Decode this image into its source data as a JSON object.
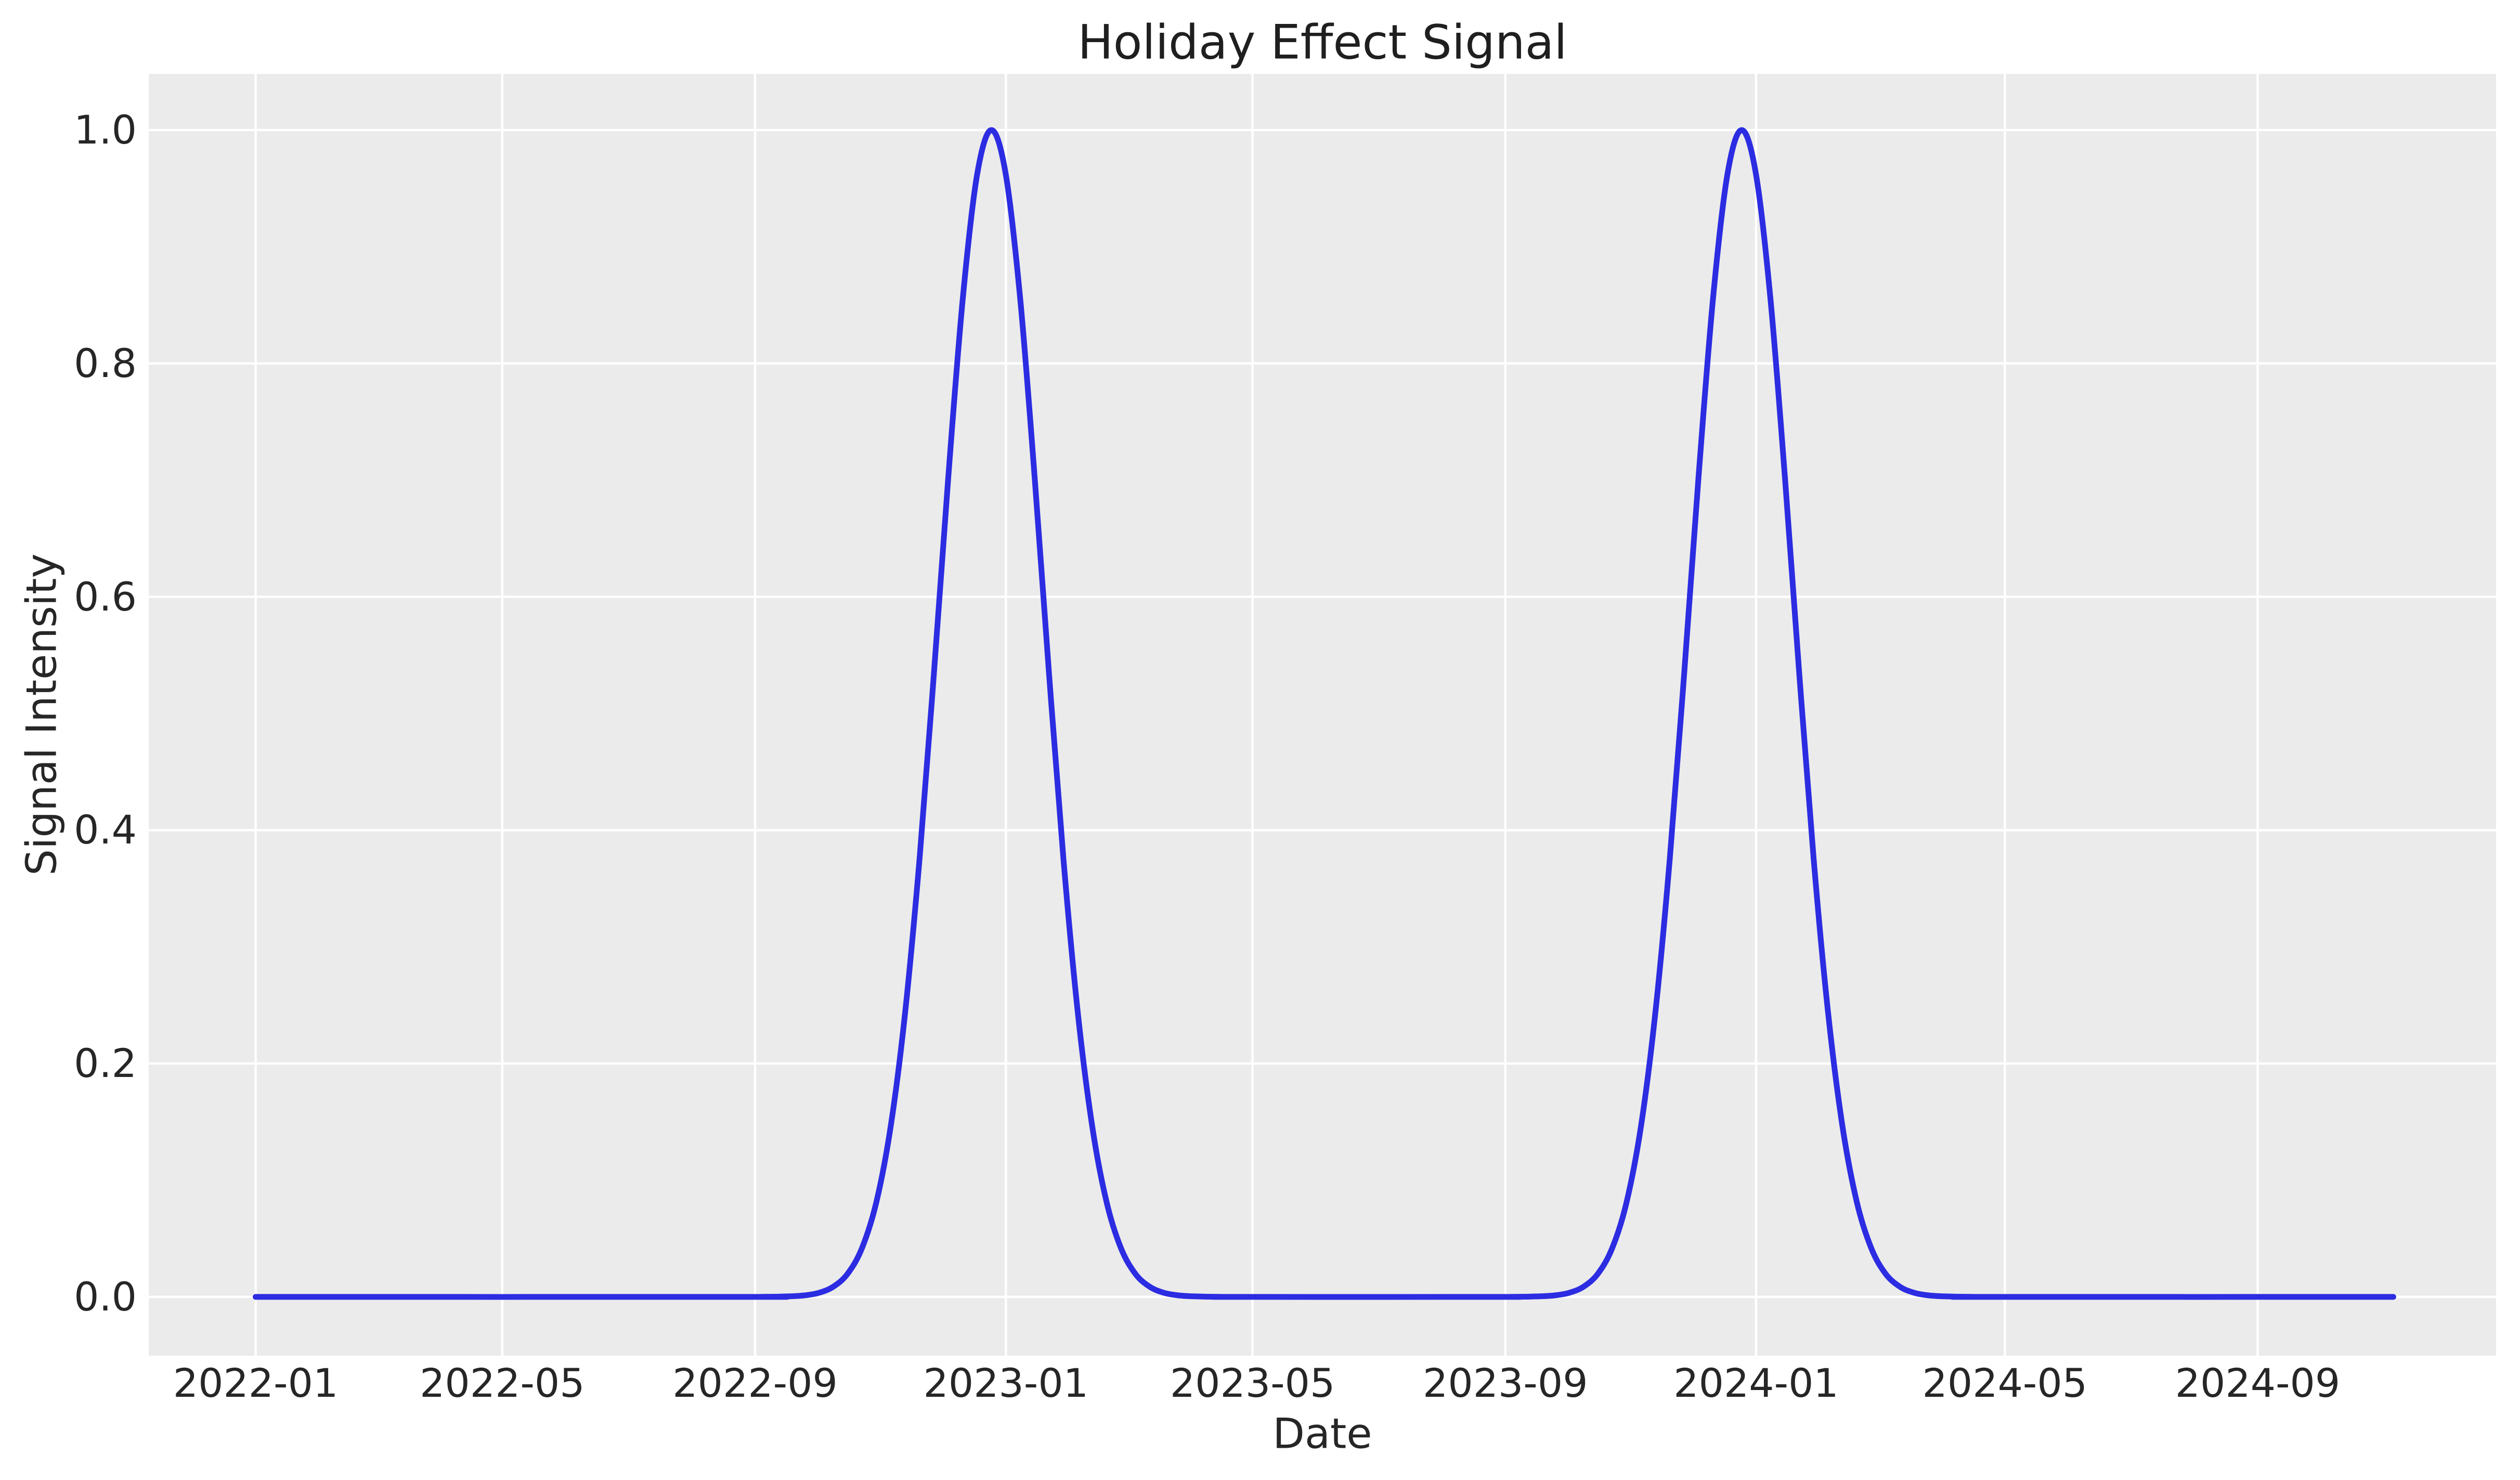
{
  "figure": {
    "title": "Holiday Effect Signal",
    "background_color": "#ffffff",
    "text_color": "#262626"
  },
  "chart_data": {
    "type": "line",
    "title": "Holiday Effect Signal",
    "xlabel": "Date",
    "ylabel": "Signal Intensity",
    "series_name": "Holiday Effect Signal",
    "line_color": "#2c2ce2",
    "plot_bg_color": "#ebebeb",
    "grid_color": "#ffffff",
    "grid": true,
    "legend": false,
    "x_start_date": "2022-01-01",
    "x_end_date": "2024-11-05",
    "x_ticks": [
      {
        "label": "2022-01",
        "day": 0
      },
      {
        "label": "2022-05",
        "day": 120
      },
      {
        "label": "2022-09",
        "day": 243
      },
      {
        "label": "2023-01",
        "day": 365
      },
      {
        "label": "2023-05",
        "day": 485
      },
      {
        "label": "2023-09",
        "day": 608
      },
      {
        "label": "2024-01",
        "day": 730
      },
      {
        "label": "2024-05",
        "day": 851
      },
      {
        "label": "2024-09",
        "day": 974
      }
    ],
    "y_ticks": [
      {
        "label": "0.0",
        "value": 0.0
      },
      {
        "label": "0.2",
        "value": 0.2
      },
      {
        "label": "0.4",
        "value": 0.4
      },
      {
        "label": "0.6",
        "value": 0.6
      },
      {
        "label": "0.8",
        "value": 0.8
      },
      {
        "label": "1.0",
        "value": 1.0
      }
    ],
    "xlim_days": [
      -52,
      1090
    ],
    "ylim": [
      -0.0504,
      1.0482
    ],
    "peaks": [
      {
        "date": "2022-12-25",
        "day": 358,
        "value": 1.0
      },
      {
        "date": "2023-12-25",
        "day": 723,
        "value": 1.0
      }
    ],
    "gaussian_sigma_days": 25,
    "points": [
      [
        0,
        0
      ],
      [
        239,
        0
      ],
      [
        246,
        0.0001
      ],
      [
        253,
        0.0002
      ],
      [
        260,
        0.0005
      ],
      [
        267,
        0.0013
      ],
      [
        274,
        0.0035
      ],
      [
        281,
        0.0087
      ],
      [
        288,
        0.0198
      ],
      [
        295,
        0.0418
      ],
      [
        302,
        0.0813
      ],
      [
        309,
        0.1464
      ],
      [
        316,
        0.2438
      ],
      [
        323,
        0.3753
      ],
      [
        330,
        0.5341
      ],
      [
        337,
        0.7027
      ],
      [
        344,
        0.8549
      ],
      [
        351,
        0.9616
      ],
      [
        358,
        1.0
      ],
      [
        365,
        0.9616
      ],
      [
        372,
        0.8549
      ],
      [
        379,
        0.7027
      ],
      [
        386,
        0.5341
      ],
      [
        393,
        0.3753
      ],
      [
        400,
        0.2438
      ],
      [
        407,
        0.1464
      ],
      [
        414,
        0.0813
      ],
      [
        421,
        0.0418
      ],
      [
        428,
        0.0198
      ],
      [
        435,
        0.0087
      ],
      [
        442,
        0.0035
      ],
      [
        449,
        0.0013
      ],
      [
        456,
        0.0005
      ],
      [
        463,
        0.0002
      ],
      [
        470,
        0.0001
      ],
      [
        477,
        0
      ],
      [
        604,
        0
      ],
      [
        611,
        0.0001
      ],
      [
        618,
        0.0002
      ],
      [
        625,
        0.0005
      ],
      [
        632,
        0.0013
      ],
      [
        639,
        0.0035
      ],
      [
        646,
        0.0087
      ],
      [
        653,
        0.0198
      ],
      [
        660,
        0.0418
      ],
      [
        667,
        0.0813
      ],
      [
        674,
        0.1464
      ],
      [
        681,
        0.2438
      ],
      [
        688,
        0.3753
      ],
      [
        695,
        0.5341
      ],
      [
        702,
        0.7027
      ],
      [
        709,
        0.8549
      ],
      [
        716,
        0.9616
      ],
      [
        723,
        1.0
      ],
      [
        730,
        0.9616
      ],
      [
        737,
        0.8549
      ],
      [
        744,
        0.7027
      ],
      [
        751,
        0.5341
      ],
      [
        758,
        0.3753
      ],
      [
        765,
        0.2438
      ],
      [
        772,
        0.1464
      ],
      [
        779,
        0.0813
      ],
      [
        786,
        0.0418
      ],
      [
        793,
        0.0198
      ],
      [
        800,
        0.0087
      ],
      [
        807,
        0.0035
      ],
      [
        814,
        0.0013
      ],
      [
        821,
        0.0005
      ],
      [
        828,
        0.0002
      ],
      [
        835,
        0.0001
      ],
      [
        842,
        0
      ],
      [
        1040,
        0
      ]
    ]
  }
}
